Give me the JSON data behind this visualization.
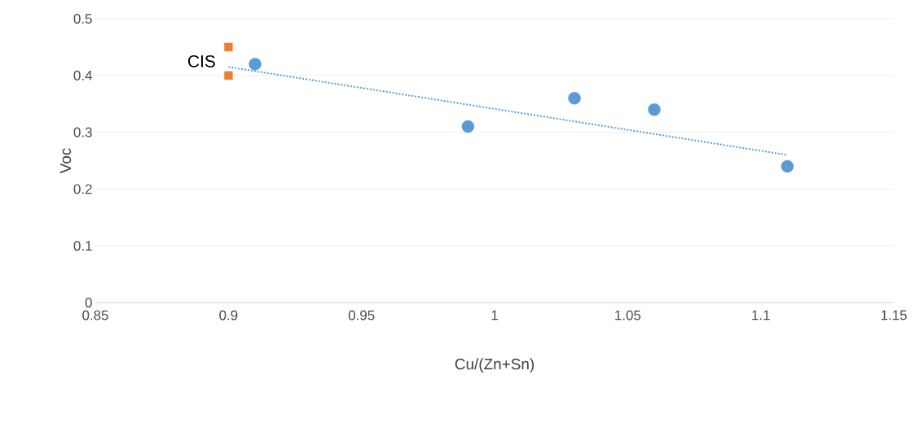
{
  "chart_data": {
    "type": "scatter",
    "xlabel": "Cu/(Zn+Sn)",
    "ylabel": "Voc",
    "xlim": [
      0.85,
      1.15
    ],
    "xticks": [
      0.85,
      0.9,
      0.95,
      1,
      1.05,
      1.1,
      1.15
    ],
    "ylim": [
      0,
      0.5
    ],
    "yticks": [
      0,
      0.1,
      0.2,
      0.3,
      0.4,
      0.5
    ],
    "grid": "y",
    "series": [
      {
        "marker": "circle",
        "color": "#5b9bd5",
        "x": [
          0.91,
          0.99,
          1.03,
          1.06,
          1.11
        ],
        "values": [
          0.42,
          0.31,
          0.36,
          0.34,
          0.24
        ]
      },
      {
        "type": "line",
        "color": "#5b9bd5",
        "line_style": "dotted",
        "marker": "none",
        "x": [
          0.9,
          1.11
        ],
        "values": [
          0.415,
          0.26
        ]
      },
      {
        "name": "CIS",
        "color": "#ed7d31",
        "marker": "square",
        "x": [
          0.9,
          0.9
        ],
        "values": [
          0.45,
          0.4
        ]
      }
    ]
  }
}
